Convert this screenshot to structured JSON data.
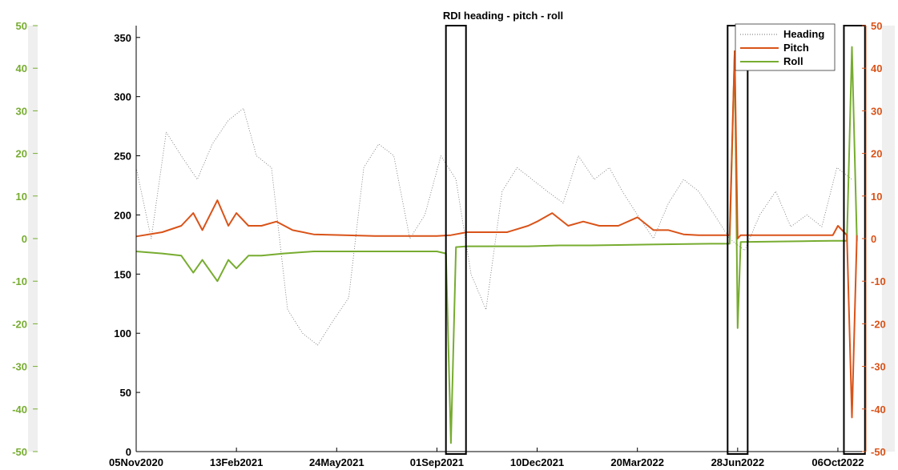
{
  "chart_data": {
    "type": "line",
    "title": "RDI heading - pitch - roll",
    "xlabel": "",
    "x_tick_labels": [
      "05Nov2020",
      "13Feb2021",
      "24May2021",
      "01Sep2021",
      "10Dec2021",
      "20Mar2022",
      "28Jun2022",
      "06Oct2022"
    ],
    "x_tick_dates": [
      "2020-11-05",
      "2021-02-13",
      "2021-05-24",
      "2021-09-01",
      "2021-12-10",
      "2022-03-20",
      "2022-06-28",
      "2022-10-06"
    ],
    "xlim": [
      "2020-11-05",
      "2022-11-03"
    ],
    "y_left": {
      "ylim": [
        0,
        360
      ],
      "ticks": [
        "0",
        "50",
        "100",
        "150",
        "200",
        "250",
        "300",
        "350"
      ]
    },
    "y_right": {
      "ylim": [
        -50,
        50
      ],
      "ticks": [
        "-50",
        "-40",
        "-30",
        "-20",
        "-10",
        "0",
        "10",
        "20",
        "30",
        "40",
        "50"
      ]
    },
    "y_outer_left": {
      "ylim": [
        -50,
        50
      ],
      "ticks": [
        "-50",
        "-40",
        "-30",
        "-20",
        "-10",
        "0",
        "10",
        "20",
        "30",
        "40",
        "50"
      ]
    },
    "legend": {
      "placement": "top-right",
      "entries": [
        "Heading",
        "Pitch",
        "Roll"
      ]
    },
    "colors": {
      "heading": "#6e6e6e",
      "pitch": "#d95319",
      "roll": "#77ac30",
      "outer_axis": "#77ac30",
      "right_axis": "#d95319"
    },
    "series": [
      {
        "name": "Heading",
        "axis": "left",
        "style": "dotted",
        "x": [
          "2020-11-05",
          "2020-11-20",
          "2020-12-05",
          "2020-12-20",
          "2021-01-05",
          "2021-01-20",
          "2021-02-05",
          "2021-02-20",
          "2021-03-05",
          "2021-03-20",
          "2021-04-05",
          "2021-04-20",
          "2021-05-05",
          "2021-05-20",
          "2021-06-05",
          "2021-06-20",
          "2021-07-05",
          "2021-07-20",
          "2021-08-05",
          "2021-08-20",
          "2021-09-05",
          "2021-09-20",
          "2021-10-05",
          "2021-10-20",
          "2021-11-05",
          "2021-11-20",
          "2021-12-05",
          "2021-12-20",
          "2022-01-05",
          "2022-01-20",
          "2022-02-05",
          "2022-02-20",
          "2022-03-05",
          "2022-03-20",
          "2022-04-05",
          "2022-04-20",
          "2022-05-05",
          "2022-05-20",
          "2022-06-05",
          "2022-06-20",
          "2022-07-05",
          "2022-07-20",
          "2022-08-05",
          "2022-08-20",
          "2022-09-05",
          "2022-09-20",
          "2022-10-05",
          "2022-10-20"
        ],
        "y": [
          240,
          180,
          270,
          250,
          230,
          260,
          280,
          290,
          250,
          240,
          120,
          100,
          90,
          110,
          130,
          240,
          260,
          250,
          180,
          200,
          250,
          230,
          150,
          120,
          220,
          240,
          230,
          220,
          210,
          250,
          230,
          240,
          220,
          200,
          180,
          210,
          230,
          220,
          200,
          180,
          170,
          200,
          220,
          190,
          200,
          190,
          240,
          230
        ]
      },
      {
        "name": "Pitch",
        "axis": "right",
        "x": [
          "2020-11-05",
          "2020-12-01",
          "2020-12-20",
          "2021-01-01",
          "2021-01-10",
          "2021-01-25",
          "2021-02-05",
          "2021-02-13",
          "2021-02-25",
          "2021-03-10",
          "2021-03-25",
          "2021-04-10",
          "2021-05-01",
          "2021-06-01",
          "2021-07-01",
          "2021-08-01",
          "2021-09-01",
          "2021-09-15",
          "2021-10-01",
          "2021-10-20",
          "2021-11-10",
          "2021-12-01",
          "2021-12-10",
          "2021-12-25",
          "2022-01-10",
          "2022-01-25",
          "2022-02-10",
          "2022-03-01",
          "2022-03-20",
          "2022-04-05",
          "2022-04-20",
          "2022-05-05",
          "2022-05-20",
          "2022-06-05",
          "2022-06-20",
          "2022-06-25",
          "2022-06-28",
          "2022-07-01",
          "2022-07-20",
          "2022-08-20",
          "2022-09-20",
          "2022-10-01",
          "2022-10-06",
          "2022-10-15",
          "2022-10-20",
          "2022-10-25"
        ],
        "y": [
          0.5,
          1.5,
          3,
          6,
          2,
          9,
          3,
          6,
          3,
          3,
          4,
          2,
          1,
          0.8,
          0.6,
          0.6,
          0.6,
          0.8,
          1.5,
          1.5,
          1.5,
          3,
          4,
          6,
          3,
          4,
          3,
          3,
          5,
          2,
          2,
          1,
          0.8,
          0.8,
          0.8,
          44,
          0,
          0.8,
          0.8,
          0.8,
          0.8,
          0.8,
          3,
          0.8,
          -42,
          0.8
        ]
      },
      {
        "name": "Roll",
        "axis": "right",
        "x": [
          "2020-11-05",
          "2020-12-01",
          "2020-12-20",
          "2021-01-01",
          "2021-01-10",
          "2021-01-25",
          "2021-02-05",
          "2021-02-13",
          "2021-02-25",
          "2021-03-10",
          "2021-04-01",
          "2021-05-01",
          "2021-06-01",
          "2021-07-01",
          "2021-08-01",
          "2021-09-01",
          "2021-09-10",
          "2021-09-15",
          "2021-09-20",
          "2021-10-01",
          "2021-11-01",
          "2021-12-01",
          "2022-01-01",
          "2022-02-01",
          "2022-03-01",
          "2022-04-01",
          "2022-05-01",
          "2022-06-01",
          "2022-06-20",
          "2022-06-25",
          "2022-06-28",
          "2022-07-01",
          "2022-08-01",
          "2022-09-01",
          "2022-10-01",
          "2022-10-15",
          "2022-10-20",
          "2022-10-25"
        ],
        "y": [
          -3,
          -3.5,
          -4,
          -8,
          -5,
          -10,
          -5,
          -7,
          -4,
          -4,
          -3.5,
          -3,
          -3,
          -3,
          -3,
          -3,
          -3.5,
          -48,
          -2,
          -1.8,
          -1.8,
          -1.8,
          -1.6,
          -1.6,
          -1.5,
          -1.4,
          -1.3,
          -1.2,
          -1.2,
          44,
          -21,
          -0.8,
          -0.7,
          -0.6,
          -0.5,
          -0.5,
          45,
          -0.5
        ]
      }
    ],
    "highlight_boxes": [
      {
        "x_start": "2021-09-10",
        "x_end": "2021-09-30"
      },
      {
        "x_start": "2022-06-18",
        "x_end": "2022-07-08"
      },
      {
        "x_start": "2022-10-12",
        "x_end": "2022-11-02"
      }
    ]
  }
}
